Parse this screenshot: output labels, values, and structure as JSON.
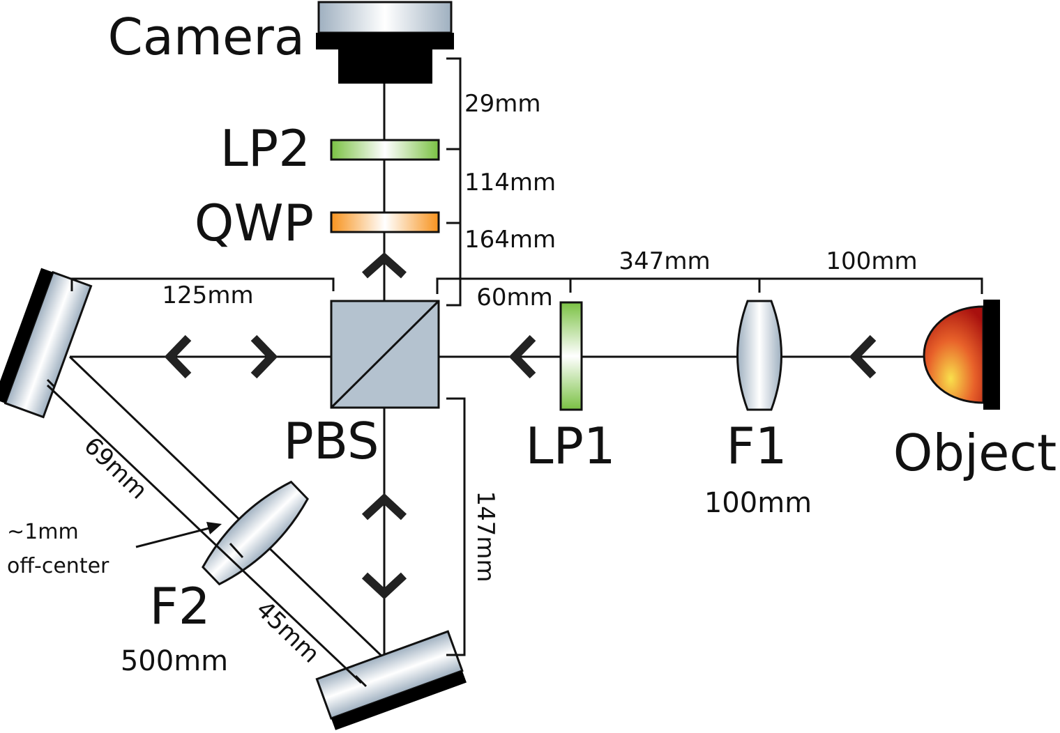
{
  "components": {
    "camera": "Camera",
    "lp2": "LP2",
    "qwp": "QWP",
    "pbs": "PBS",
    "lp1": "LP1",
    "f1": "F1",
    "f1_focal": "100mm",
    "f2": "F2",
    "f2_focal": "500mm",
    "object": "Object"
  },
  "dimensions": {
    "camera_lp2": "29mm",
    "lp2_qwp": "114mm",
    "qwp_pbs": "164mm",
    "mirror_pbs": "125mm",
    "pbs_lp1": "60mm",
    "lp1_f1": "347mm",
    "f1_object": "100mm",
    "mirror_f2": "69mm",
    "f2_mirror": "45mm",
    "pbs_mirror": "147mm"
  },
  "annotations": {
    "offcenter_line1": "~1mm",
    "offcenter_line2": "off-center"
  },
  "colors": {
    "green_filter": "#7ac143",
    "orange_waveplate": "#f7931e",
    "metal": "#aab7c4",
    "object_inner": "#f9d44c",
    "object_outer": "#b0140f",
    "mount": "#000000"
  }
}
